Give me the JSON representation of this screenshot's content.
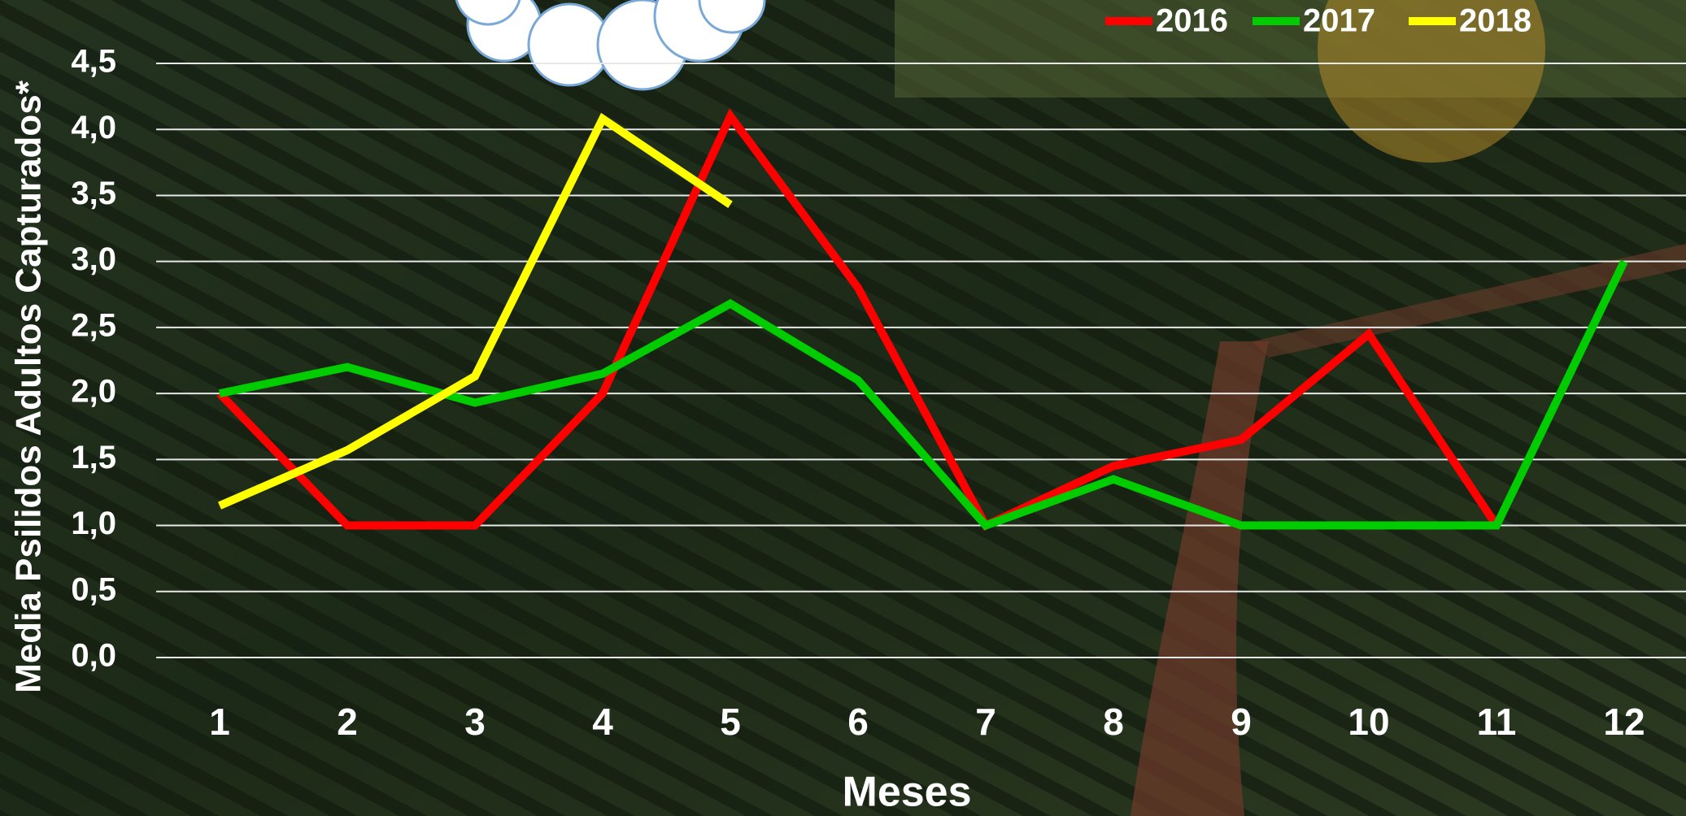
{
  "chart_data": {
    "type": "line",
    "x_label": "Meses",
    "y_label": "Media Psilidos Adultos Capturados*",
    "categories": [
      "1",
      "2",
      "3",
      "4",
      "5",
      "6",
      "7",
      "8",
      "9",
      "10",
      "11",
      "12"
    ],
    "series": [
      {
        "name": "2016",
        "color": "#ff0000",
        "values": [
          2.0,
          1.0,
          1.0,
          2.0,
          4.1,
          2.8,
          1.0,
          1.45,
          1.65,
          2.45,
          1.0,
          null
        ]
      },
      {
        "name": "2017",
        "color": "#00cc00",
        "values": [
          2.0,
          2.2,
          1.93,
          2.15,
          2.68,
          2.1,
          1.0,
          1.35,
          1.0,
          1.0,
          1.0,
          3.0
        ]
      },
      {
        "name": "2018",
        "color": "#ffff00",
        "values": [
          1.15,
          1.57,
          2.13,
          4.08,
          3.43,
          null,
          null,
          null,
          null,
          null,
          null,
          null
        ]
      }
    ],
    "ylim": [
      0,
      4.5
    ],
    "yticks": [
      {
        "value": 0,
        "label": "0,0"
      },
      {
        "value": 0.5,
        "label": "0,5"
      },
      {
        "value": 1,
        "label": "1,0"
      },
      {
        "value": 1.5,
        "label": "1,5"
      },
      {
        "value": 2,
        "label": "2,0"
      },
      {
        "value": 2.5,
        "label": "2,5"
      },
      {
        "value": 3,
        "label": "3,0"
      },
      {
        "value": 3.5,
        "label": "3,5"
      },
      {
        "value": 4,
        "label": "4,0"
      },
      {
        "value": 4.5,
        "label": "4,5"
      }
    ],
    "grid": true,
    "legend": "upper right"
  }
}
